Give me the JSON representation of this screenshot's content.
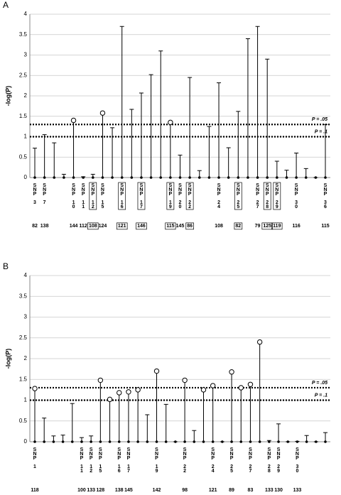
{
  "chart_data": [
    {
      "type": "lollipop",
      "panel": "A",
      "ylabel": "-log(P)",
      "ylim": [
        0,
        4
      ],
      "yticks": [
        0,
        0.5,
        1,
        1.5,
        2,
        2.5,
        3,
        3.5,
        4
      ],
      "grid": true,
      "reference_lines": [
        {
          "value": 1.3,
          "label": "P = .05"
        },
        {
          "value": 1,
          "label": "P = .1"
        }
      ],
      "categories": [
        "SNP 3",
        "SNP 7",
        null,
        null,
        "SNP 10",
        "SNP 11",
        "SNP 12",
        "SNP 15",
        null,
        "SNP 16",
        null,
        "SNP 17",
        null,
        null,
        "SNP 19",
        "SNP 20",
        "SNP 22",
        null,
        null,
        "SNP 24",
        null,
        "SNP 25",
        null,
        "SNP 27",
        "SNP 28",
        "SNP 29",
        null,
        "SNP 30",
        null,
        null,
        "SNP 36"
      ],
      "values": [
        0.72,
        1.05,
        0.85,
        0.08,
        1.4,
        0.02,
        0.08,
        1.58,
        1.22,
        3.7,
        1.67,
        2.07,
        2.52,
        3.1,
        1.35,
        0.55,
        2.45,
        0.17,
        1.25,
        2.32,
        0.73,
        1.62,
        3.4,
        3.7,
        2.9,
        0.4,
        0.18,
        0.6,
        0.22,
        0,
        1.3
      ],
      "markers": [
        "cap",
        "cap",
        "cap",
        "cap",
        "circle",
        "cap",
        "cap",
        "circle",
        "cap",
        "cap",
        "cap",
        "cap",
        "cap",
        "cap",
        "circle",
        "cap",
        "cap",
        "cap",
        "cap",
        "cap",
        "cap",
        "cap",
        "cap",
        "cap",
        "cap",
        "cap",
        "cap",
        "cap",
        "cap",
        "cap",
        "cap"
      ],
      "counts": [
        82,
        138,
        null,
        null,
        144,
        112,
        108,
        124,
        null,
        121,
        null,
        146,
        null,
        null,
        115,
        145,
        86,
        null,
        null,
        108,
        null,
        82,
        null,
        79,
        125,
        119,
        null,
        116,
        null,
        null,
        115
      ],
      "boxed": [
        false,
        false,
        false,
        false,
        false,
        false,
        true,
        false,
        false,
        true,
        false,
        true,
        false,
        false,
        true,
        false,
        true,
        false,
        false,
        false,
        false,
        true,
        false,
        false,
        true,
        true,
        false,
        false,
        false,
        false,
        false
      ],
      "color": "#000000"
    },
    {
      "type": "lollipop",
      "panel": "B",
      "ylabel": "-log(P)",
      "ylim": [
        0,
        4
      ],
      "yticks": [
        0,
        0.5,
        1,
        1.5,
        2,
        2.5,
        3,
        3.5,
        4
      ],
      "grid": true,
      "reference_lines": [
        {
          "value": 1.3,
          "label": "P = .05"
        },
        {
          "value": 1,
          "label": "P = .1"
        }
      ],
      "categories": [
        "SNP 1",
        null,
        null,
        null,
        null,
        "SNP 11",
        "SNP 12",
        "SNP 15",
        null,
        "SNP 16",
        "SNP 17",
        null,
        null,
        "SNP 19",
        null,
        null,
        "SNP 22",
        null,
        null,
        "SNP 24",
        null,
        "SNP 25",
        null,
        "SNP 27",
        null,
        "SNP 28",
        "SNP 29",
        null,
        "SNP 30",
        null,
        null,
        null
      ],
      "values": [
        1.28,
        0.57,
        0.14,
        0.16,
        0.92,
        0.1,
        0.14,
        1.48,
        1.02,
        1.18,
        1.2,
        1.25,
        0.65,
        1.7,
        0.9,
        0,
        1.48,
        0.27,
        1.25,
        1.35,
        0,
        1.68,
        1.3,
        1.38,
        2.4,
        0.03,
        0.43,
        0,
        0.01,
        0.15,
        0,
        0.22
      ],
      "markers": [
        "circle",
        "cap",
        "cap",
        "cap",
        "cap",
        "cap",
        "cap",
        "circle",
        "circle",
        "circle",
        "circle",
        "circle",
        "cap",
        "circle",
        "cap",
        "cap",
        "circle",
        "cap",
        "circle",
        "circle",
        "cap",
        "circle",
        "circle",
        "circle",
        "circle",
        "cap",
        "cap",
        "cap",
        "cap",
        "cap",
        "cap",
        "cap"
      ],
      "counts": [
        118,
        null,
        null,
        null,
        null,
        100,
        133,
        128,
        null,
        138,
        145,
        null,
        null,
        142,
        null,
        null,
        98,
        null,
        null,
        121,
        null,
        89,
        null,
        83,
        null,
        133,
        130,
        null,
        133,
        null,
        null,
        null
      ],
      "color": "#000000"
    }
  ]
}
